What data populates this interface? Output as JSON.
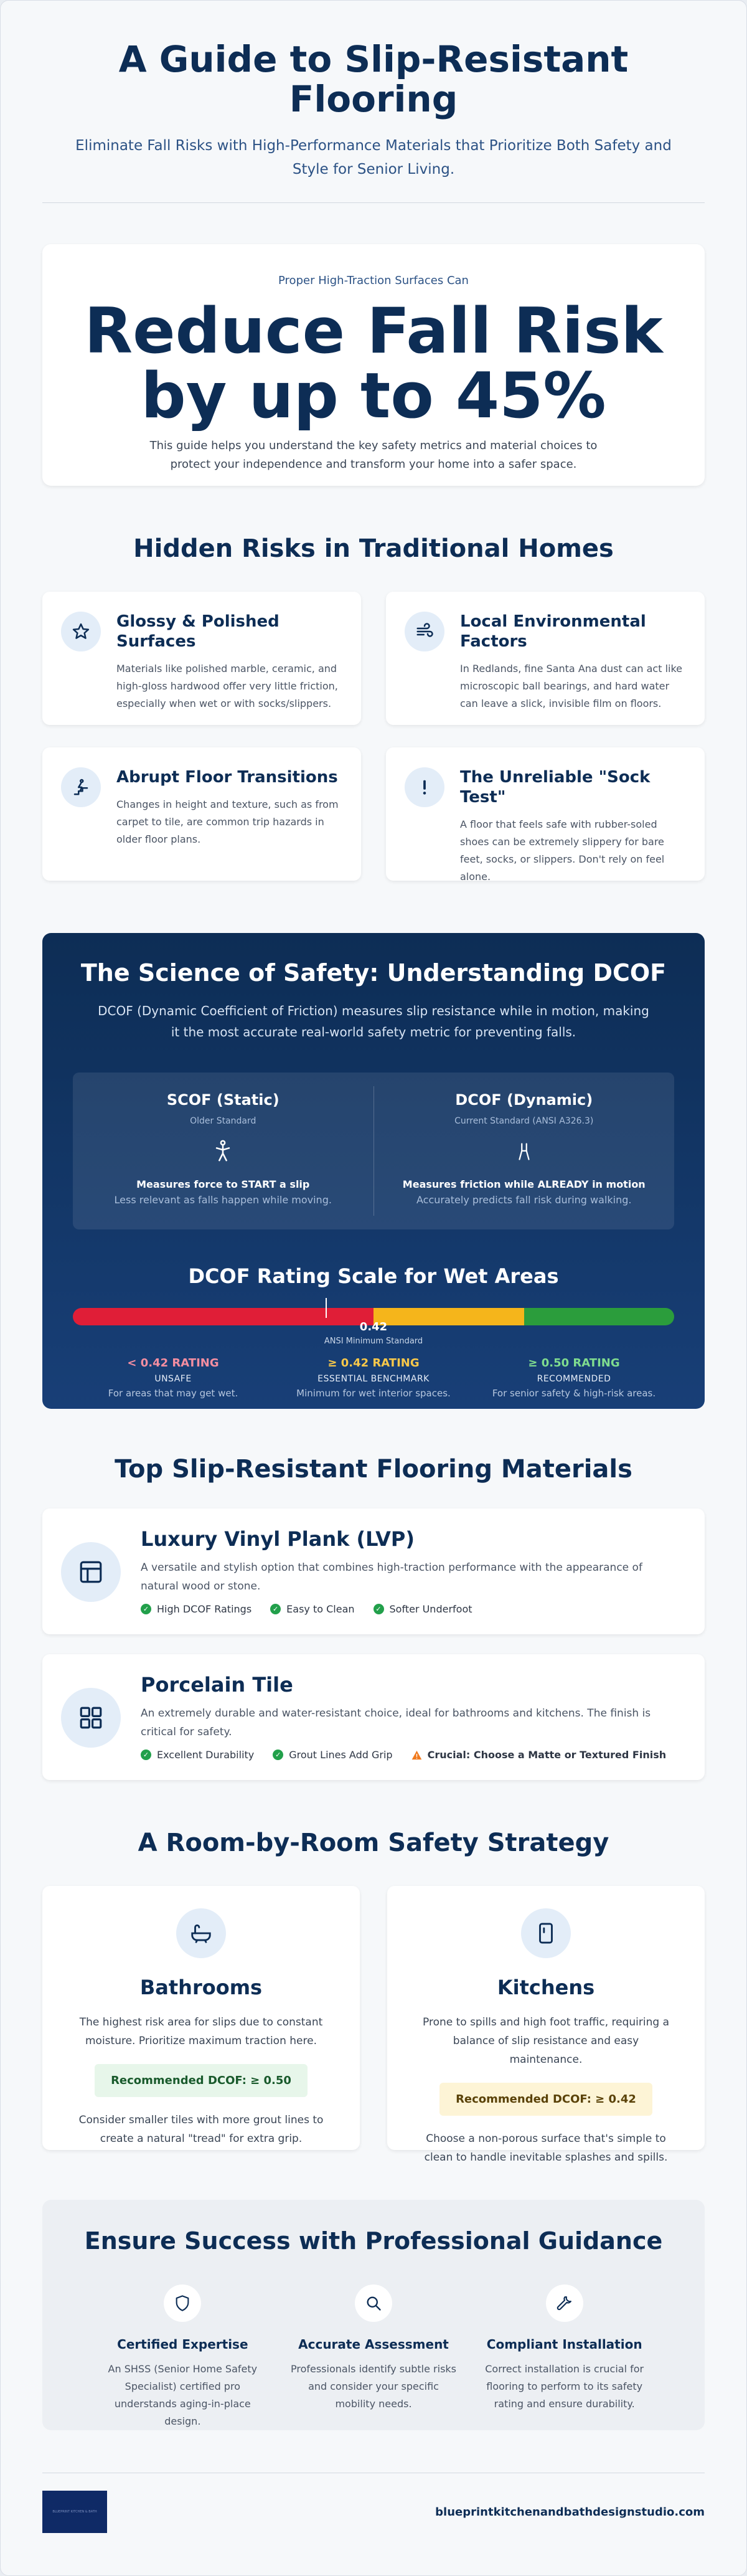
{
  "header": {
    "title": "A Guide to Slip-Resistant Flooring",
    "subtitle": "Eliminate Fall Risks with High-Performance Materials that Prioritize Both Safety and Style for Senior Living."
  },
  "stat": {
    "kicker": "Proper High-Traction Surfaces Can",
    "headline": "Reduce Fall Risk by up to 45%",
    "description": "This guide helps you understand the key safety metrics and material choices to protect your independence and transform your home into a safer space."
  },
  "risks": {
    "title": "Hidden Risks in Traditional Homes",
    "items": [
      {
        "icon": "star-icon",
        "title": "Glossy & Polished Surfaces",
        "text": "Materials like polished marble, ceramic, and high-gloss hardwood offer very little friction, especially when wet or with socks/slippers."
      },
      {
        "icon": "wind-icon",
        "title": "Local Environmental Factors",
        "text": "In Redlands, fine Santa Ana dust can act like microscopic ball bearings, and hard water can leave a slick, invisible film on floors."
      },
      {
        "icon": "stairs-icon",
        "title": "Abrupt Floor Transitions",
        "text": "Changes in height and texture, such as from carpet to tile, are common trip hazards in older floor plans."
      },
      {
        "icon": "exclamation-icon",
        "title": "The Unreliable \"Sock Test\"",
        "text": "A floor that feels safe with rubber-soled shoes can be extremely slippery for bare feet, socks, or slippers. Don't rely on feel alone."
      }
    ]
  },
  "science": {
    "title": "The Science of Safety: Understanding DCOF",
    "subtitle": "DCOF (Dynamic Coefficient of Friction) measures slip resistance while in motion, making it the most accurate real-world safety metric for preventing falls.",
    "scof": {
      "title": "SCOF (Static)",
      "standard": "Older Standard",
      "measure": "Measures force to START a slip",
      "note": "Less relevant as falls happen while moving."
    },
    "dcof": {
      "title": "DCOF (Dynamic)",
      "standard": "Current Standard (ANSI A326.3)",
      "measure": "Measures friction while ALREADY in motion",
      "note": "Accurately predicts fall risk during walking."
    },
    "scale_title": "DCOF Rating Scale for Wet Areas",
    "marker_value": "0.42",
    "marker_label": "ANSI Minimum Standard",
    "ratings": [
      {
        "label": "< 0.42 RATING",
        "level": "UNSAFE",
        "note": "For areas that may get wet.",
        "color": "#f48ea1"
      },
      {
        "label": "≥ 0.42 RATING",
        "level": "ESSENTIAL BENCHMARK",
        "note": "Minimum for wet interior spaces.",
        "color": "#f8c84a"
      },
      {
        "label": "≥ 0.50 RATING",
        "level": "RECOMMENDED",
        "note": "For senior safety & high-risk areas.",
        "color": "#7fdc8f"
      }
    ],
    "colors": {
      "unsafe": "#e01e37",
      "essential": "#f5b51b",
      "recommended": "#2b9d3c"
    }
  },
  "materials": {
    "title": "Top Slip-Resistant Flooring Materials",
    "items": [
      {
        "icon": "layout-icon",
        "title": "Luxury Vinyl Plank (LVP)",
        "text": "A versatile and stylish option that combines high-traction performance with the appearance of natural wood or stone.",
        "tags": [
          "High DCOF Ratings",
          "Easy to Clean",
          "Softer Underfoot"
        ]
      },
      {
        "icon": "grid-icon",
        "title": "Porcelain Tile",
        "text": "An extremely durable and water-resistant choice, ideal for bathrooms and kitchens. The finish is critical for safety.",
        "tags": [
          "Excellent Durability",
          "Grout Lines Add Grip"
        ],
        "warning": "Crucial: Choose a Matte or Textured Finish"
      }
    ]
  },
  "rooms": {
    "title": "A Room-by-Room Safety Strategy",
    "items": [
      {
        "icon": "bathtub-icon",
        "title": "Bathrooms",
        "text": "The highest risk area for slips due to constant moisture. Prioritize maximum traction here.",
        "badge": "Recommended DCOF: ≥ 0.50",
        "tip": "Consider smaller tiles with more grout lines to create a natural \"tread\" for extra grip."
      },
      {
        "icon": "refrigerator-icon",
        "title": "Kitchens",
        "text": "Prone to spills and high foot traffic, requiring a balance of slip resistance and easy maintenance.",
        "badge": "Recommended DCOF: ≥ 0.42",
        "tip": "Choose a non-porous surface that's simple to clean to handle inevitable splashes and spills."
      }
    ]
  },
  "pro": {
    "title": "Ensure Success with Professional Guidance",
    "items": [
      {
        "icon": "shield-icon",
        "title": "Certified Expertise",
        "text": "An SHSS (Senior Home Safety Specialist) certified pro understands aging-in-place design."
      },
      {
        "icon": "search-icon",
        "title": "Accurate Assessment",
        "text": "Professionals identify subtle risks and consider your specific mobility needs."
      },
      {
        "icon": "wrench-icon",
        "title": "Compliant Installation",
        "text": "Correct installation is crucial for flooring to perform to its safety rating and ensure durability."
      }
    ]
  },
  "footer": {
    "logo_text": "BLUEPRINT KITCHEN & BATH",
    "site": "blueprintkitchenandbathdesignstudio.com"
  }
}
